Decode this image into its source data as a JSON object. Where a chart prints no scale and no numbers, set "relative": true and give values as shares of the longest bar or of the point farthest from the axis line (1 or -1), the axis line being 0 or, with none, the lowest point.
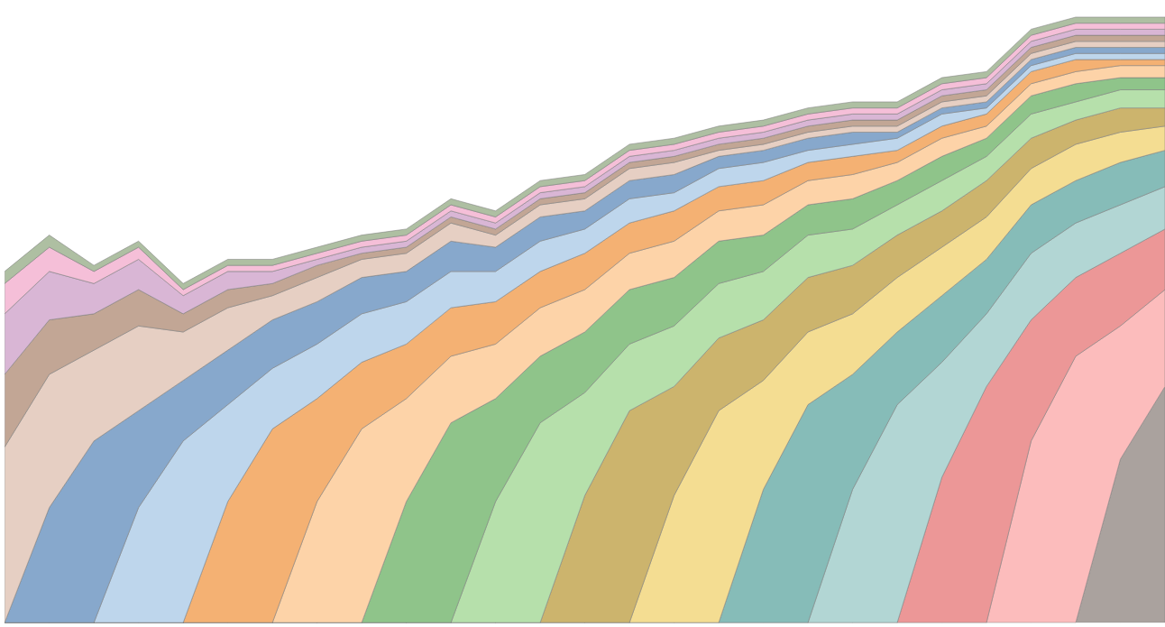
{
  "chart_data": {
    "type": "area",
    "stacked": true,
    "relative": true,
    "categories": [
      null,
      null,
      null,
      null,
      null,
      null,
      null,
      null,
      null,
      null,
      null,
      null,
      null,
      null,
      null,
      null,
      null,
      null,
      null,
      null,
      null,
      null,
      null,
      null,
      null,
      null,
      null
    ],
    "series": [
      {
        "color": "#aaa29e",
        "values": [
          0,
          0,
          0,
          0,
          0,
          0,
          0,
          0,
          0,
          0,
          0,
          0,
          0,
          0,
          0,
          0,
          0,
          0,
          0,
          0,
          0,
          0,
          0,
          0,
          0,
          0.27,
          0.39
        ]
      },
      {
        "color": "#fcbcbc",
        "values": [
          0,
          0,
          0,
          0,
          0,
          0,
          0,
          0,
          0,
          0,
          0,
          0,
          0,
          0,
          0,
          0,
          0,
          0,
          0,
          0,
          0,
          0,
          0,
          0.3,
          0.44,
          0.22,
          0.16
        ]
      },
      {
        "color": "#ec9797",
        "values": [
          0,
          0,
          0,
          0,
          0,
          0,
          0,
          0,
          0,
          0,
          0,
          0,
          0,
          0,
          0,
          0,
          0,
          0,
          0,
          0,
          0,
          0.24,
          0.39,
          0.2,
          0.13,
          0.12,
          0.1
        ]
      },
      {
        "color": "#b2d6d4",
        "values": [
          0,
          0,
          0,
          0,
          0,
          0,
          0,
          0,
          0,
          0,
          0,
          0,
          0,
          0,
          0,
          0,
          0,
          0,
          0,
          0.22,
          0.36,
          0.19,
          0.12,
          0.11,
          0.09,
          0.08,
          0.07
        ]
      },
      {
        "color": "#86bcb8",
        "values": [
          0,
          0,
          0,
          0,
          0,
          0,
          0,
          0,
          0,
          0,
          0,
          0,
          0,
          0,
          0,
          0,
          0,
          0.22,
          0.36,
          0.19,
          0.12,
          0.11,
          0.09,
          0.08,
          0.07,
          0.07,
          0.06
        ]
      },
      {
        "color": "#f4dd92",
        "values": [
          0,
          0,
          0,
          0,
          0,
          0,
          0,
          0,
          0,
          0,
          0,
          0,
          0,
          0,
          0,
          0.21,
          0.35,
          0.18,
          0.12,
          0.1,
          0.09,
          0.08,
          0.07,
          0.06,
          0.06,
          0.05,
          0.04
        ]
      },
      {
        "color": "#ccb46d",
        "values": [
          0,
          0,
          0,
          0,
          0,
          0,
          0,
          0,
          0,
          0,
          0,
          0,
          0,
          0.21,
          0.35,
          0.18,
          0.12,
          0.1,
          0.09,
          0.08,
          0.07,
          0.06,
          0.06,
          0.05,
          0.04,
          0.04,
          0.03
        ]
      },
      {
        "color": "#b6e0ab",
        "values": [
          0,
          0,
          0,
          0,
          0,
          0,
          0,
          0,
          0,
          0,
          0,
          0.2,
          0.33,
          0.17,
          0.11,
          0.1,
          0.09,
          0.08,
          0.07,
          0.06,
          0.05,
          0.05,
          0.04,
          0.04,
          0.03,
          0.03,
          0.03
        ]
      },
      {
        "color": "#8fc48a",
        "values": [
          0,
          0,
          0,
          0,
          0,
          0,
          0,
          0,
          0,
          0.2,
          0.33,
          0.17,
          0.11,
          0.1,
          0.09,
          0.08,
          0.07,
          0.06,
          0.05,
          0.05,
          0.04,
          0.04,
          0.03,
          0.03,
          0.03,
          0.02,
          0.02
        ]
      },
      {
        "color": "#fdd3a8",
        "values": [
          0,
          0,
          0,
          0,
          0,
          0,
          0,
          0.2,
          0.32,
          0.17,
          0.11,
          0.09,
          0.08,
          0.07,
          0.06,
          0.06,
          0.05,
          0.05,
          0.04,
          0.04,
          0.03,
          0.03,
          0.02,
          0.02,
          0.02,
          0.02,
          0.02
        ]
      },
      {
        "color": "#f4b173",
        "values": [
          0,
          0,
          0,
          0,
          0,
          0.2,
          0.32,
          0.17,
          0.11,
          0.09,
          0.08,
          0.07,
          0.06,
          0.06,
          0.05,
          0.05,
          0.04,
          0.04,
          0.03,
          0.03,
          0.02,
          0.02,
          0.02,
          0.02,
          0.02,
          0.01,
          0.01
        ]
      },
      {
        "color": "#bed6ec",
        "values": [
          0,
          0,
          0,
          0.19,
          0.3,
          0.16,
          0.1,
          0.09,
          0.08,
          0.07,
          0.06,
          0.05,
          0.05,
          0.04,
          0.04,
          0.03,
          0.03,
          0.03,
          0.02,
          0.02,
          0.02,
          0.02,
          0.01,
          0.01,
          0.01,
          0.01,
          0.01
        ]
      },
      {
        "color": "#87a8cc",
        "values": [
          0,
          0.19,
          0.3,
          0.16,
          0.1,
          0.09,
          0.08,
          0.07,
          0.06,
          0.05,
          0.05,
          0.04,
          0.04,
          0.03,
          0.03,
          0.03,
          0.02,
          0.02,
          0.02,
          0.02,
          0.01,
          0.01,
          0.01,
          0.01,
          0.01,
          0.01,
          0.01
        ]
      },
      {
        "color": "#e6cfc3",
        "values": [
          0.29,
          0.22,
          0.15,
          0.14,
          0.08,
          0.07,
          0.04,
          0.04,
          0.03,
          0.03,
          0.03,
          0.02,
          0.02,
          0.02,
          0.02,
          0.02,
          0.01,
          0.01,
          0.01,
          0.01,
          0.01,
          0.01,
          0.01,
          0.01,
          0.01,
          0.01,
          0.01
        ]
      },
      {
        "color": "#c2a695",
        "values": [
          0.12,
          0.09,
          0.06,
          0.06,
          0.03,
          0.03,
          0.02,
          0.02,
          0.01,
          0.01,
          0.01,
          0.01,
          0.01,
          0.01,
          0.01,
          0.01,
          0.01,
          0.01,
          0.01,
          0.01,
          0.01,
          0.01,
          0.01,
          0.01,
          0.01,
          0.01,
          0.01
        ]
      },
      {
        "color": "#d9b6d5",
        "values": [
          0.1,
          0.08,
          0.05,
          0.05,
          0.03,
          0.03,
          0.02,
          0.01,
          0.01,
          0.01,
          0.01,
          0.01,
          0.01,
          0.01,
          0.01,
          0.01,
          0.01,
          0.01,
          0.01,
          0.01,
          0.01,
          0.01,
          0.01,
          0.01,
          0.01,
          0.01,
          0.01
        ]
      },
      {
        "color": "#f5bfd8",
        "values": [
          0.05,
          0.04,
          0.02,
          0.02,
          0.01,
          0.01,
          0.01,
          0.01,
          0.01,
          0.01,
          0.01,
          0.01,
          0.01,
          0.01,
          0.01,
          0.01,
          0.01,
          0.01,
          0.01,
          0.01,
          0.01,
          0.01,
          0.01,
          0.01,
          0.01,
          0.01,
          0.01
        ]
      },
      {
        "color": "#aebfa2",
        "values": [
          0.02,
          0.02,
          0.01,
          0.01,
          0.01,
          0.01,
          0.01,
          0.01,
          0.01,
          0.01,
          0.01,
          0.01,
          0.01,
          0.01,
          0.01,
          0.01,
          0.01,
          0.01,
          0.01,
          0.01,
          0.01,
          0.01,
          0.01,
          0.01,
          0.01,
          0.01,
          0.01
        ]
      }
    ]
  }
}
